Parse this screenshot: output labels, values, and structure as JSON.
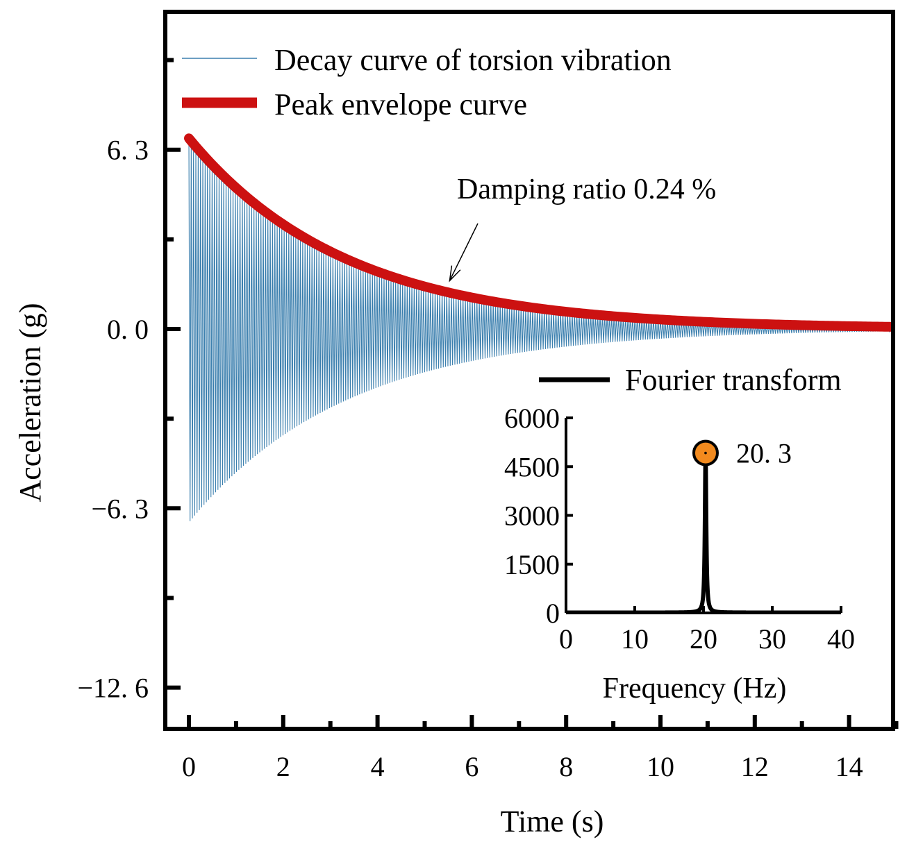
{
  "chart_data": [
    {
      "type": "line",
      "name": "main-decay-chart",
      "xlabel": "Time (s)",
      "ylabel": "Acceleration (g)",
      "xlim": [
        -0.4,
        15
      ],
      "ylim": [
        -14.0,
        11.0
      ],
      "x_ticks": [
        0,
        2,
        4,
        6,
        8,
        10,
        12,
        14
      ],
      "x_tick_labels": [
        "0",
        "2",
        "4",
        "6",
        "8",
        "10",
        "12",
        "14"
      ],
      "y_ticks": [
        6.3,
        0.0,
        -6.3,
        -12.6
      ],
      "y_tick_labels": [
        "6. 3",
        "0. 0",
        "−6. 3",
        "−12. 6"
      ],
      "series": [
        {
          "name": "Decay curve of torsion vibration",
          "color": "#3b7fae",
          "signal": {
            "initial_amplitude_pos": 6.7,
            "initial_amplitude_neg": -6.8,
            "decay_rate": 0.3,
            "frequency_hz": 20.3,
            "t_start": 0,
            "t_end": 15
          }
        },
        {
          "name": "Peak envelope curve",
          "color": "#cc1111",
          "envelope": {
            "initial": 6.7,
            "decay_rate": 0.3,
            "t_start": 0,
            "t_end": 15
          }
        }
      ],
      "annotations": [
        {
          "text": "Damping ratio  0.24 %",
          "arrow_to": {
            "x": 5.5,
            "y": 1.55
          }
        }
      ],
      "legend_position": "top-left"
    },
    {
      "type": "line",
      "name": "inset-fourier-chart",
      "xlabel": "Frequency (Hz)",
      "ylabel": "",
      "xlim": [
        0,
        40
      ],
      "ylim": [
        0,
        6000
      ],
      "x_ticks": [
        0,
        10,
        20,
        30,
        40
      ],
      "x_tick_labels": [
        "0",
        "10",
        "20",
        "30",
        "40"
      ],
      "y_ticks": [
        0,
        1500,
        3000,
        4500,
        6000
      ],
      "y_tick_labels": [
        "0",
        "1500",
        "3000",
        "4500",
        "6000"
      ],
      "series": [
        {
          "name": "Fourier transform",
          "color": "#000000",
          "peak": {
            "frequency_hz": 20.3,
            "amplitude": 4920,
            "half_width_hz": 0.12
          }
        }
      ],
      "peak_marker": {
        "x": 20.3,
        "y": 4920,
        "label": "20. 3",
        "color": "#f28a1e"
      },
      "legend_position": "top-right"
    }
  ]
}
